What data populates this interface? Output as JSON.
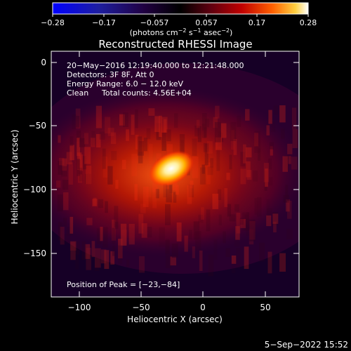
{
  "colorbar": {
    "ticks": [
      "−0.28",
      "−0.17",
      "−0.057",
      "0.057",
      "0.17",
      "0.28"
    ],
    "unit_label_parts": [
      "(photons cm",
      "−2",
      " s",
      "−1",
      " asec",
      "−2",
      ")"
    ]
  },
  "title": "Reconstructed RHESSI Image",
  "info": {
    "time_range": "20−May−2016 12:19:40.000 to 12:21:48.000",
    "detectors": "Detectors: 3F 8F, Att 0",
    "energy": "Energy Range: 6.0 − 12.0 keV",
    "clean": "Clean",
    "total_counts": "Total counts: 4.56E+04"
  },
  "peak_label": "Position of Peak = [−23,−84]",
  "axes": {
    "xlabel": "Heliocentric X (arcsec)",
    "ylabel": "Heliocentric Y (arcsec)",
    "xticks": [
      "−100",
      "−50",
      "0",
      "50"
    ],
    "yticks": [
      "0",
      "−50",
      "−100",
      "−150"
    ]
  },
  "footer": "5−Sep−2022 15:52",
  "image": {
    "x_range_arcsec": [
      -118,
      74
    ],
    "y_range_arcsec": [
      -186,
      4
    ],
    "peak_arcsec": [
      -23,
      -84
    ],
    "color_range": [
      -0.28,
      0.28
    ],
    "colormap": [
      "#0000ff",
      "#1a1a9a",
      "#000000",
      "#3a0050",
      "#a00000",
      "#ff3000",
      "#ffb000",
      "#ffffff"
    ]
  }
}
